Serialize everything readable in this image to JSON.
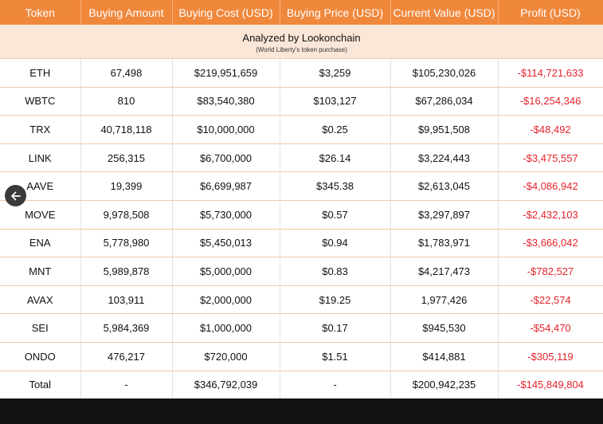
{
  "headers": [
    "Token",
    "Buying Amount",
    "Buying Cost (USD)",
    "Buying Price (USD)",
    "Current Value (USD)",
    "Profit (USD)"
  ],
  "banner": {
    "title": "Analyzed by Lookonchain",
    "subtitle": "(World Liberty's token purchase)"
  },
  "rows": [
    {
      "token": "ETH",
      "amount": "67,498",
      "cost": "$219,951,659",
      "price": "$3,259",
      "value": "$105,230,026",
      "profit": "-$114,721,633"
    },
    {
      "token": "WBTC",
      "amount": "810",
      "cost": "$83,540,380",
      "price": "$103,127",
      "value": "$67,286,034",
      "profit": "-$16,254,346"
    },
    {
      "token": "TRX",
      "amount": "40,718,118",
      "cost": "$10,000,000",
      "price": "$0.25",
      "value": "$9,951,508",
      "profit": "-$48,492"
    },
    {
      "token": "LINK",
      "amount": "256,315",
      "cost": "$6,700,000",
      "price": "$26.14",
      "value": "$3,224,443",
      "profit": "-$3,475,557"
    },
    {
      "token": "AAVE",
      "amount": "19,399",
      "cost": "$6,699,987",
      "price": "$345.38",
      "value": "$2,613,045",
      "profit": "-$4,086,942"
    },
    {
      "token": "MOVE",
      "amount": "9,978,508",
      "cost": "$5,730,000",
      "price": "$0.57",
      "value": "$3,297,897",
      "profit": "-$2,432,103"
    },
    {
      "token": "ENA",
      "amount": "5,778,980",
      "cost": "$5,450,013",
      "price": "$0.94",
      "value": "$1,783,971",
      "profit": "-$3,666,042"
    },
    {
      "token": "MNT",
      "amount": "5,989,878",
      "cost": "$5,000,000",
      "price": "$0.83",
      "value": "$4,217,473",
      "profit": "-$782,527"
    },
    {
      "token": "AVAX",
      "amount": "103,911",
      "cost": "$2,000,000",
      "price": "$19.25",
      "value": "1,977,426",
      "profit": "-$22,574"
    },
    {
      "token": "SEI",
      "amount": "5,984,369",
      "cost": "$1,000,000",
      "price": "$0.17",
      "value": "$945,530",
      "profit": "-$54,470"
    },
    {
      "token": "ONDO",
      "amount": "476,217",
      "cost": "$720,000",
      "price": "$1.51",
      "value": "$414,881",
      "profit": "-$305,119"
    }
  ],
  "total": {
    "token": "Total",
    "amount": "-",
    "cost": "$346,792,039",
    "price": "-",
    "value": "$200,942,235",
    "profit": "-$145,849,804"
  },
  "colors": {
    "header_bg": "#f0883c",
    "banner_bg": "#fbe7d8",
    "loss": "#e4232c"
  },
  "icons": {
    "back": "arrow-left-icon"
  }
}
